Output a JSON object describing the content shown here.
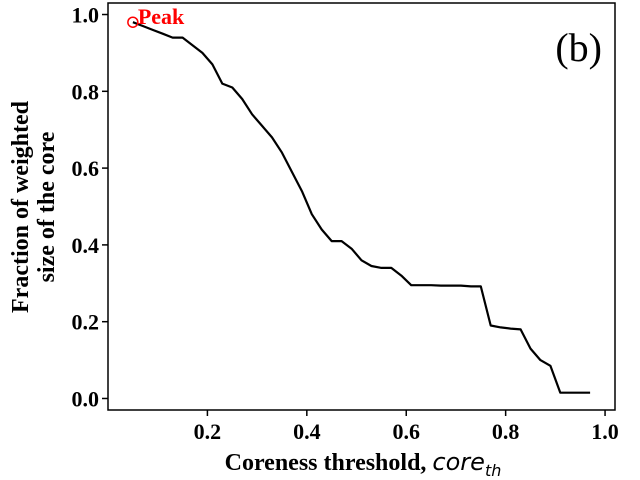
{
  "chart_data": {
    "type": "line",
    "panel_label": "(b)",
    "xlabel": "Coreness threshold, ",
    "xlabel_math": "core",
    "xlabel_sub": "th",
    "ylabel_line1": "Fraction of weighted",
    "ylabel_line2": "size of the core",
    "xlim": [
      0.0,
      1.02
    ],
    "ylim": [
      -0.03,
      1.03
    ],
    "x_ticks": [
      {
        "value": 0.2,
        "label": "0.2"
      },
      {
        "value": 0.4,
        "label": "0.4"
      },
      {
        "value": 0.6,
        "label": "0.6"
      },
      {
        "value": 0.8,
        "label": "0.8"
      },
      {
        "value": 1.0,
        "label": "1.0"
      }
    ],
    "y_ticks": [
      {
        "value": 0.0,
        "label": "0.0"
      },
      {
        "value": 0.2,
        "label": "0.2"
      },
      {
        "value": 0.4,
        "label": "0.4"
      },
      {
        "value": 0.6,
        "label": "0.6"
      },
      {
        "value": 0.8,
        "label": "0.8"
      },
      {
        "value": 1.0,
        "label": "1.0"
      }
    ],
    "grid": false,
    "line_color": "#000000",
    "annotation": {
      "text": "Peak",
      "x": 0.05,
      "y": 0.98,
      "color": "#ff0000"
    },
    "series": [
      {
        "x": [
          0.05,
          0.07,
          0.09,
          0.11,
          0.13,
          0.15,
          0.17,
          0.19,
          0.21,
          0.23,
          0.25,
          0.27,
          0.29,
          0.31,
          0.33,
          0.35,
          0.37,
          0.39,
          0.41,
          0.43,
          0.45,
          0.47,
          0.49,
          0.51,
          0.53,
          0.55,
          0.57,
          0.59,
          0.61,
          0.63,
          0.65,
          0.67,
          0.69,
          0.71,
          0.73,
          0.75,
          0.77,
          0.79,
          0.81,
          0.83,
          0.85,
          0.87,
          0.89,
          0.91,
          0.93,
          0.95,
          0.97
        ],
        "y": [
          0.98,
          0.97,
          0.96,
          0.95,
          0.94,
          0.94,
          0.92,
          0.9,
          0.87,
          0.82,
          0.81,
          0.78,
          0.74,
          0.71,
          0.68,
          0.64,
          0.59,
          0.54,
          0.48,
          0.44,
          0.41,
          0.41,
          0.39,
          0.36,
          0.345,
          0.34,
          0.34,
          0.32,
          0.295,
          0.295,
          0.295,
          0.294,
          0.294,
          0.294,
          0.292,
          0.292,
          0.19,
          0.185,
          0.182,
          0.18,
          0.13,
          0.1,
          0.085,
          0.015,
          0.015,
          0.015,
          0.015
        ]
      }
    ]
  }
}
